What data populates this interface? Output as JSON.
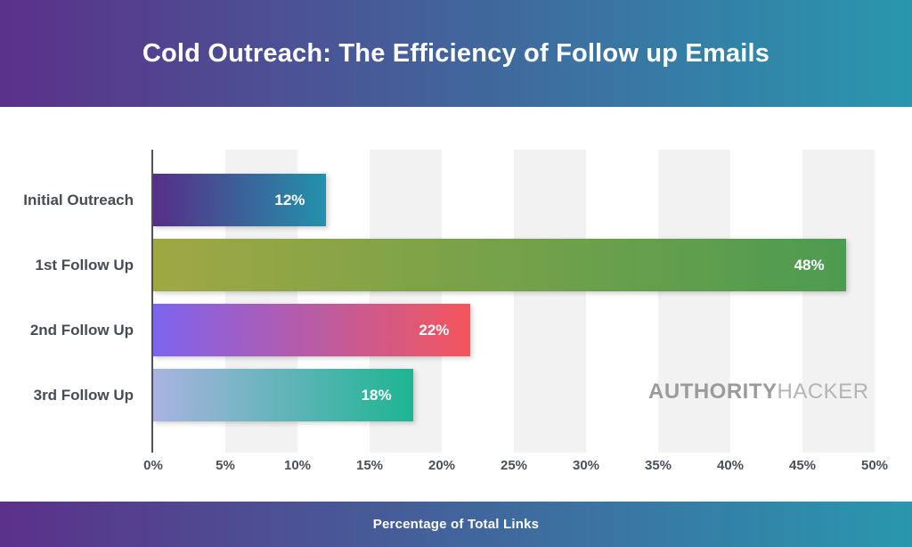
{
  "header": {
    "title": "Cold Outreach: The Efficiency of Follow up Emails"
  },
  "footer": {
    "label": "Percentage of Total Links"
  },
  "watermark": {
    "primary": "AUTHORITY",
    "secondary": "HACKER"
  },
  "colors": {
    "banner_gradient_start": "#5b3189",
    "banner_gradient_end": "#2997ae",
    "stripe": "#f2f2f3",
    "axis_line": "#52525a",
    "label_text": "#474c54",
    "tick_text": "#4b4f58",
    "value_text": "#ffffff",
    "watermark_primary": "#9b9b9b",
    "watermark_secondary": "#b4b4b4"
  },
  "chart_data": {
    "type": "bar",
    "orientation": "horizontal",
    "title": "Cold Outreach: The Efficiency of Follow up Emails",
    "xlabel": "Percentage of Total Links",
    "categories": [
      "Initial Outreach",
      "1st Follow Up",
      "2nd Follow Up",
      "3rd Follow Up"
    ],
    "values": [
      12,
      48,
      22,
      18
    ],
    "value_labels": [
      "12%",
      "48%",
      "22%",
      "18%"
    ],
    "bar_gradients": [
      {
        "from": "#562e86",
        "to": "#2292ac"
      },
      {
        "from": "#9fa843",
        "to": "#4d9b50"
      },
      {
        "from": "#7d63ee",
        "to": "#f4555c"
      },
      {
        "from": "#a9b4e0",
        "to": "#1db592"
      }
    ],
    "xlim": [
      0,
      50
    ],
    "xtick_step": 5,
    "xtick_labels": [
      "0%",
      "5%",
      "10%",
      "15%",
      "20%",
      "25%",
      "30%",
      "35%",
      "40%",
      "45%",
      "50%"
    ],
    "grid": "alternating light-gray vertical bands on 5% intervals (5-10, 15-20, 25-30, 35-40, 45-50)",
    "legend": "none"
  }
}
